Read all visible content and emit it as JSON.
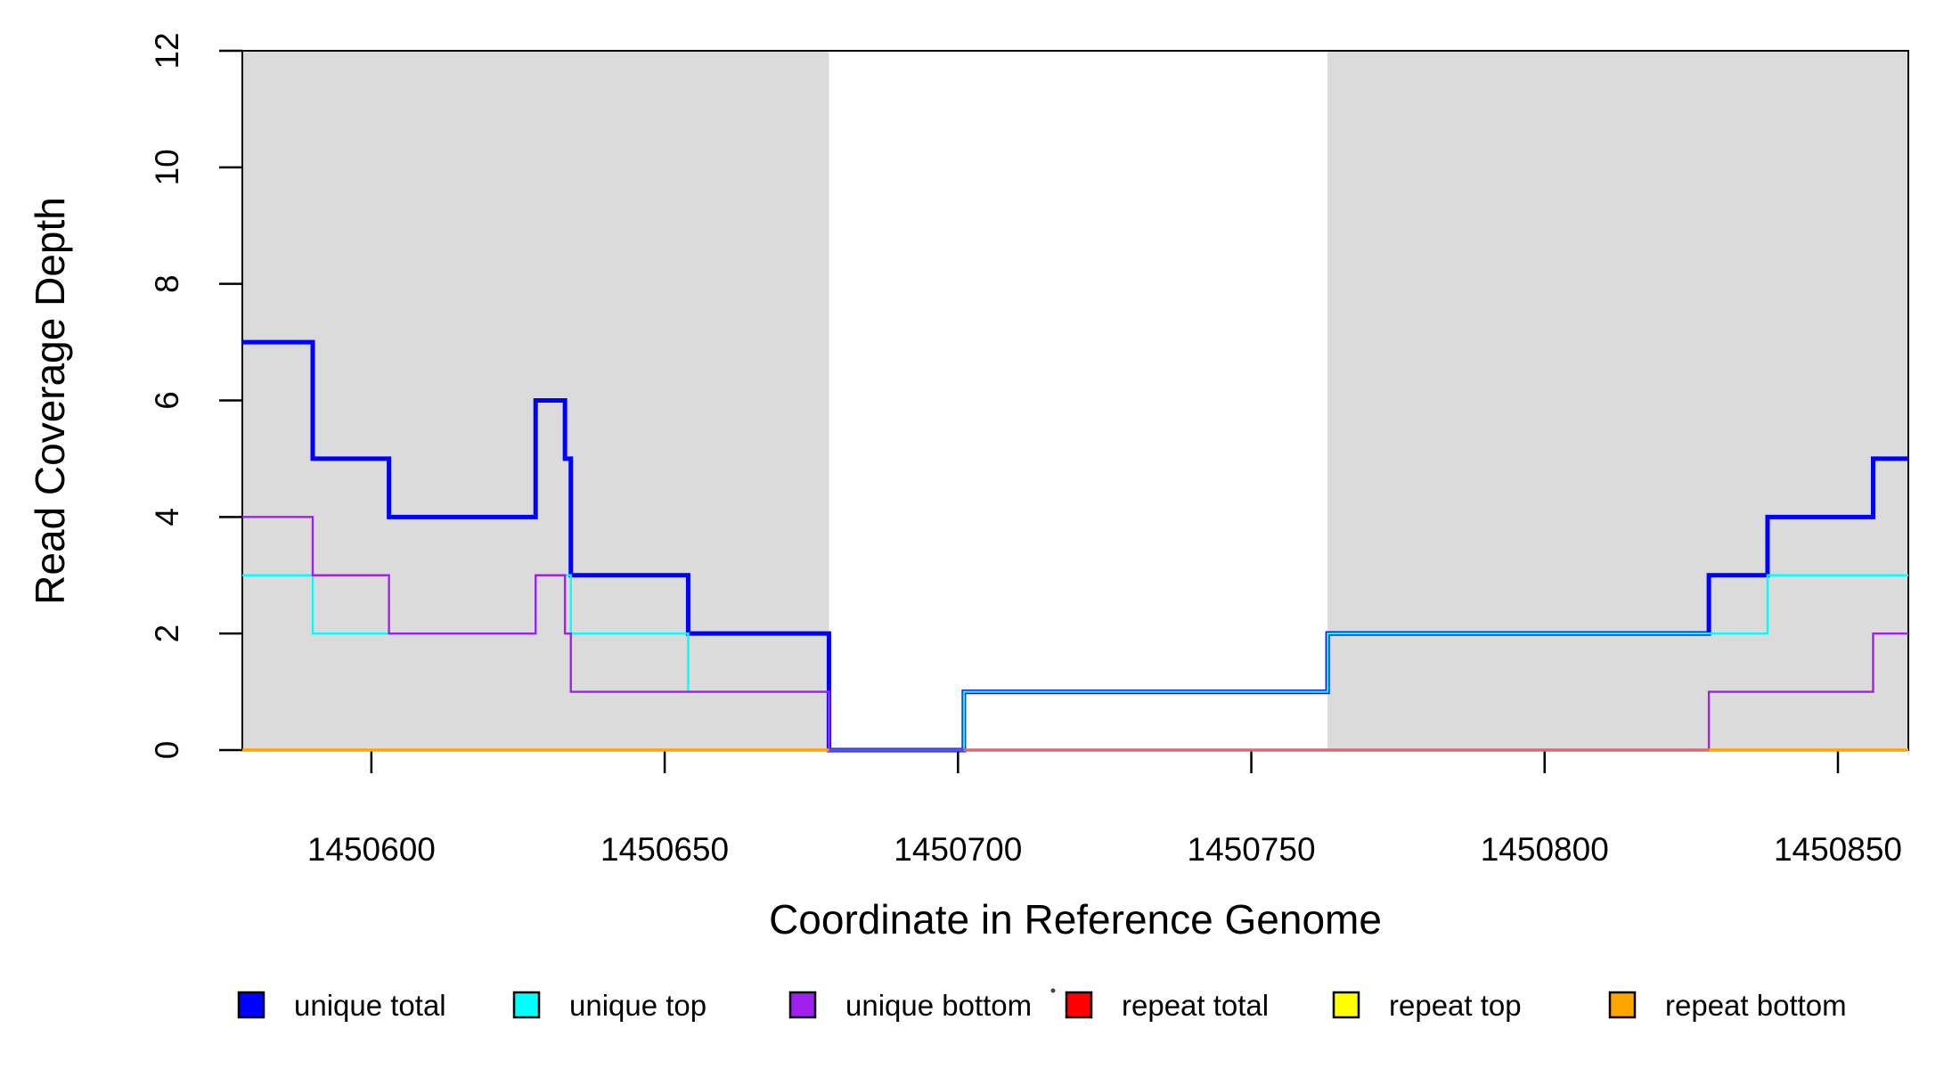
{
  "chart_data": {
    "type": "line",
    "line_style": "step",
    "title": "",
    "xlabel": "Coordinate in Reference Genome",
    "ylabel": "Read Coverage Depth",
    "xlim": [
      1450578,
      1450862
    ],
    "ylim": [
      0,
      12
    ],
    "x_ticks": [
      1450600,
      1450650,
      1450700,
      1450750,
      1450800,
      1450850
    ],
    "y_ticks": [
      0,
      2,
      4,
      6,
      8,
      10,
      12
    ],
    "grid": "off",
    "shade_color": "#DBDBDB",
    "shaded_regions": [
      {
        "from": 1450578,
        "to": 1450678
      },
      {
        "from": 1450763,
        "to": 1450862
      }
    ],
    "series": [
      {
        "name": "unique total",
        "color": "#0000FF",
        "width": 5,
        "draw": true,
        "steps": [
          [
            1450578,
            7
          ],
          [
            1450590,
            5
          ],
          [
            1450603,
            4
          ],
          [
            1450628,
            6
          ],
          [
            1450633,
            5
          ],
          [
            1450634,
            3
          ],
          [
            1450654,
            2
          ],
          [
            1450678,
            0
          ],
          [
            1450701,
            1
          ],
          [
            1450763,
            2
          ],
          [
            1450828,
            3
          ],
          [
            1450838,
            4
          ],
          [
            1450856,
            5
          ],
          [
            1450862,
            5
          ]
        ]
      },
      {
        "name": "unique top",
        "color": "#00FFFF",
        "width": 2.4,
        "draw": true,
        "steps": [
          [
            1450578,
            3
          ],
          [
            1450590,
            2
          ],
          [
            1450628,
            3
          ],
          [
            1450634,
            2
          ],
          [
            1450654,
            1
          ],
          [
            1450678,
            0
          ],
          [
            1450701,
            1
          ],
          [
            1450763,
            2
          ],
          [
            1450838,
            3
          ],
          [
            1450862,
            3
          ]
        ]
      },
      {
        "name": "unique bottom",
        "color": "#A020F0",
        "width": 2.4,
        "draw": true,
        "steps": [
          [
            1450578,
            4
          ],
          [
            1450590,
            3
          ],
          [
            1450603,
            2
          ],
          [
            1450628,
            3
          ],
          [
            1450633,
            2
          ],
          [
            1450634,
            1
          ],
          [
            1450678,
            0
          ],
          [
            1450828,
            1
          ],
          [
            1450856,
            2
          ],
          [
            1450862,
            2
          ]
        ]
      },
      {
        "name": "repeat total",
        "color": "#FF0000",
        "width": 2.4,
        "draw": false,
        "steps": [
          [
            1450578,
            0
          ],
          [
            1450862,
            0
          ]
        ]
      },
      {
        "name": "repeat top",
        "color": "#FFFF00",
        "width": 2.4,
        "draw": false,
        "steps": [
          [
            1450578,
            0
          ],
          [
            1450862,
            0
          ]
        ]
      },
      {
        "name": "repeat bottom",
        "color": "#FFA500",
        "width": 2.4,
        "draw": false,
        "steps": [
          [
            1450578,
            0
          ],
          [
            1450862,
            0
          ]
        ]
      }
    ],
    "baseline_segments": [
      {
        "from": 1450578,
        "to": 1450678,
        "color": "#FFA500"
      },
      {
        "from": 1450678,
        "to": 1450701,
        "color": "#5656D6"
      },
      {
        "from": 1450701,
        "to": 1450828,
        "color": "#D36E6E"
      },
      {
        "from": 1450828,
        "to": 1450862,
        "color": "#FFA500"
      }
    ],
    "legend": {
      "position": "bottom",
      "items": [
        {
          "label": "unique total",
          "color": "#0000FF"
        },
        {
          "label": "unique top",
          "color": "#00FFFF"
        },
        {
          "label": "unique bottom",
          "color": "#A020F0"
        },
        {
          "label": "repeat total",
          "color": "#FF0000"
        },
        {
          "label": "repeat top",
          "color": "#FFFF00"
        },
        {
          "label": "repeat bottom",
          "color": "#FFA500"
        }
      ]
    },
    "artifact_dot": {
      "color": "#444444"
    }
  }
}
